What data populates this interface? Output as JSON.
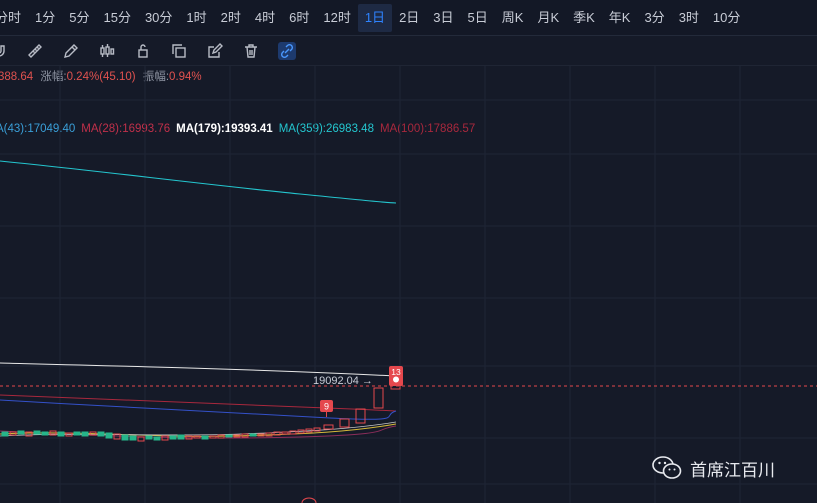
{
  "timeframes": [
    "分时",
    "1分",
    "5分",
    "15分",
    "30分",
    "1时",
    "2时",
    "4时",
    "6时",
    "12时",
    "1日",
    "2日",
    "3日",
    "5日",
    "周K",
    "月K",
    "季K",
    "年K",
    "3分",
    "3时",
    "10分"
  ],
  "active_timeframe": "1日",
  "tools": [
    {
      "name": "magnet-icon"
    },
    {
      "name": "ruler-icon"
    },
    {
      "name": "pencil-icon"
    },
    {
      "name": "candlestick-icon"
    },
    {
      "name": "lock-icon"
    },
    {
      "name": "copy-icon"
    },
    {
      "name": "note-edit-icon"
    },
    {
      "name": "trash-icon"
    },
    {
      "name": "link-icon"
    }
  ],
  "info": {
    "price_partial": "388.64",
    "change_label": "涨幅:",
    "change_value": "0.24%(45.10)",
    "amplitude_label": "振幅:",
    "amplitude_value": "0.94%"
  },
  "ma_lines": [
    {
      "text": "A(43):17049.40",
      "color": "#3a9fd8"
    },
    {
      "text": "MA(28):16993.76",
      "color": "#c0304a"
    },
    {
      "text": "MA(179):19393.41",
      "color": "#ffffff"
    },
    {
      "text": "MA(359):26983.48",
      "color": "#24c6cf"
    },
    {
      "text": "MA(100):17886.57",
      "color": "#a8283d"
    }
  ],
  "price_marker": "19092.04 →",
  "badges": [
    "9",
    "13"
  ],
  "watermark": "首席江百川",
  "colors": {
    "up": "#e5484d",
    "down": "#26b58a",
    "accent": "#2e83ff"
  }
}
